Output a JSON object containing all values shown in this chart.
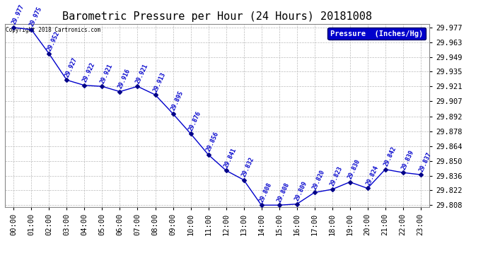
{
  "title": "Barometric Pressure per Hour (24 Hours) 20181008",
  "hours": [
    "00:00",
    "01:00",
    "02:00",
    "03:00",
    "04:00",
    "05:00",
    "06:00",
    "07:00",
    "08:00",
    "09:00",
    "10:00",
    "11:00",
    "12:00",
    "13:00",
    "14:00",
    "15:00",
    "16:00",
    "17:00",
    "18:00",
    "19:00",
    "20:00",
    "21:00",
    "22:00",
    "23:00"
  ],
  "values": [
    29.977,
    29.975,
    29.952,
    29.927,
    29.922,
    29.921,
    29.916,
    29.921,
    29.913,
    29.895,
    29.876,
    29.856,
    29.841,
    29.832,
    29.808,
    29.808,
    29.809,
    29.82,
    29.823,
    29.83,
    29.824,
    29.842,
    29.839,
    29.837
  ],
  "line_color": "#0000cc",
  "marker_color": "#000088",
  "legend_label": "Pressure  (Inches/Hg)",
  "legend_bg": "#0000cc",
  "legend_fg": "#ffffff",
  "copyright_text": "Copyright 2018 Cartronics.com",
  "ylim_min": 29.8065,
  "ylim_max": 29.9805,
  "yticks": [
    29.808,
    29.822,
    29.836,
    29.85,
    29.864,
    29.878,
    29.892,
    29.907,
    29.921,
    29.935,
    29.949,
    29.963,
    29.977
  ],
  "bg_color": "#ffffff",
  "grid_color": "#bbbbbb",
  "title_fontsize": 11,
  "tick_fontsize": 7.5,
  "annotation_fontsize": 6.0
}
